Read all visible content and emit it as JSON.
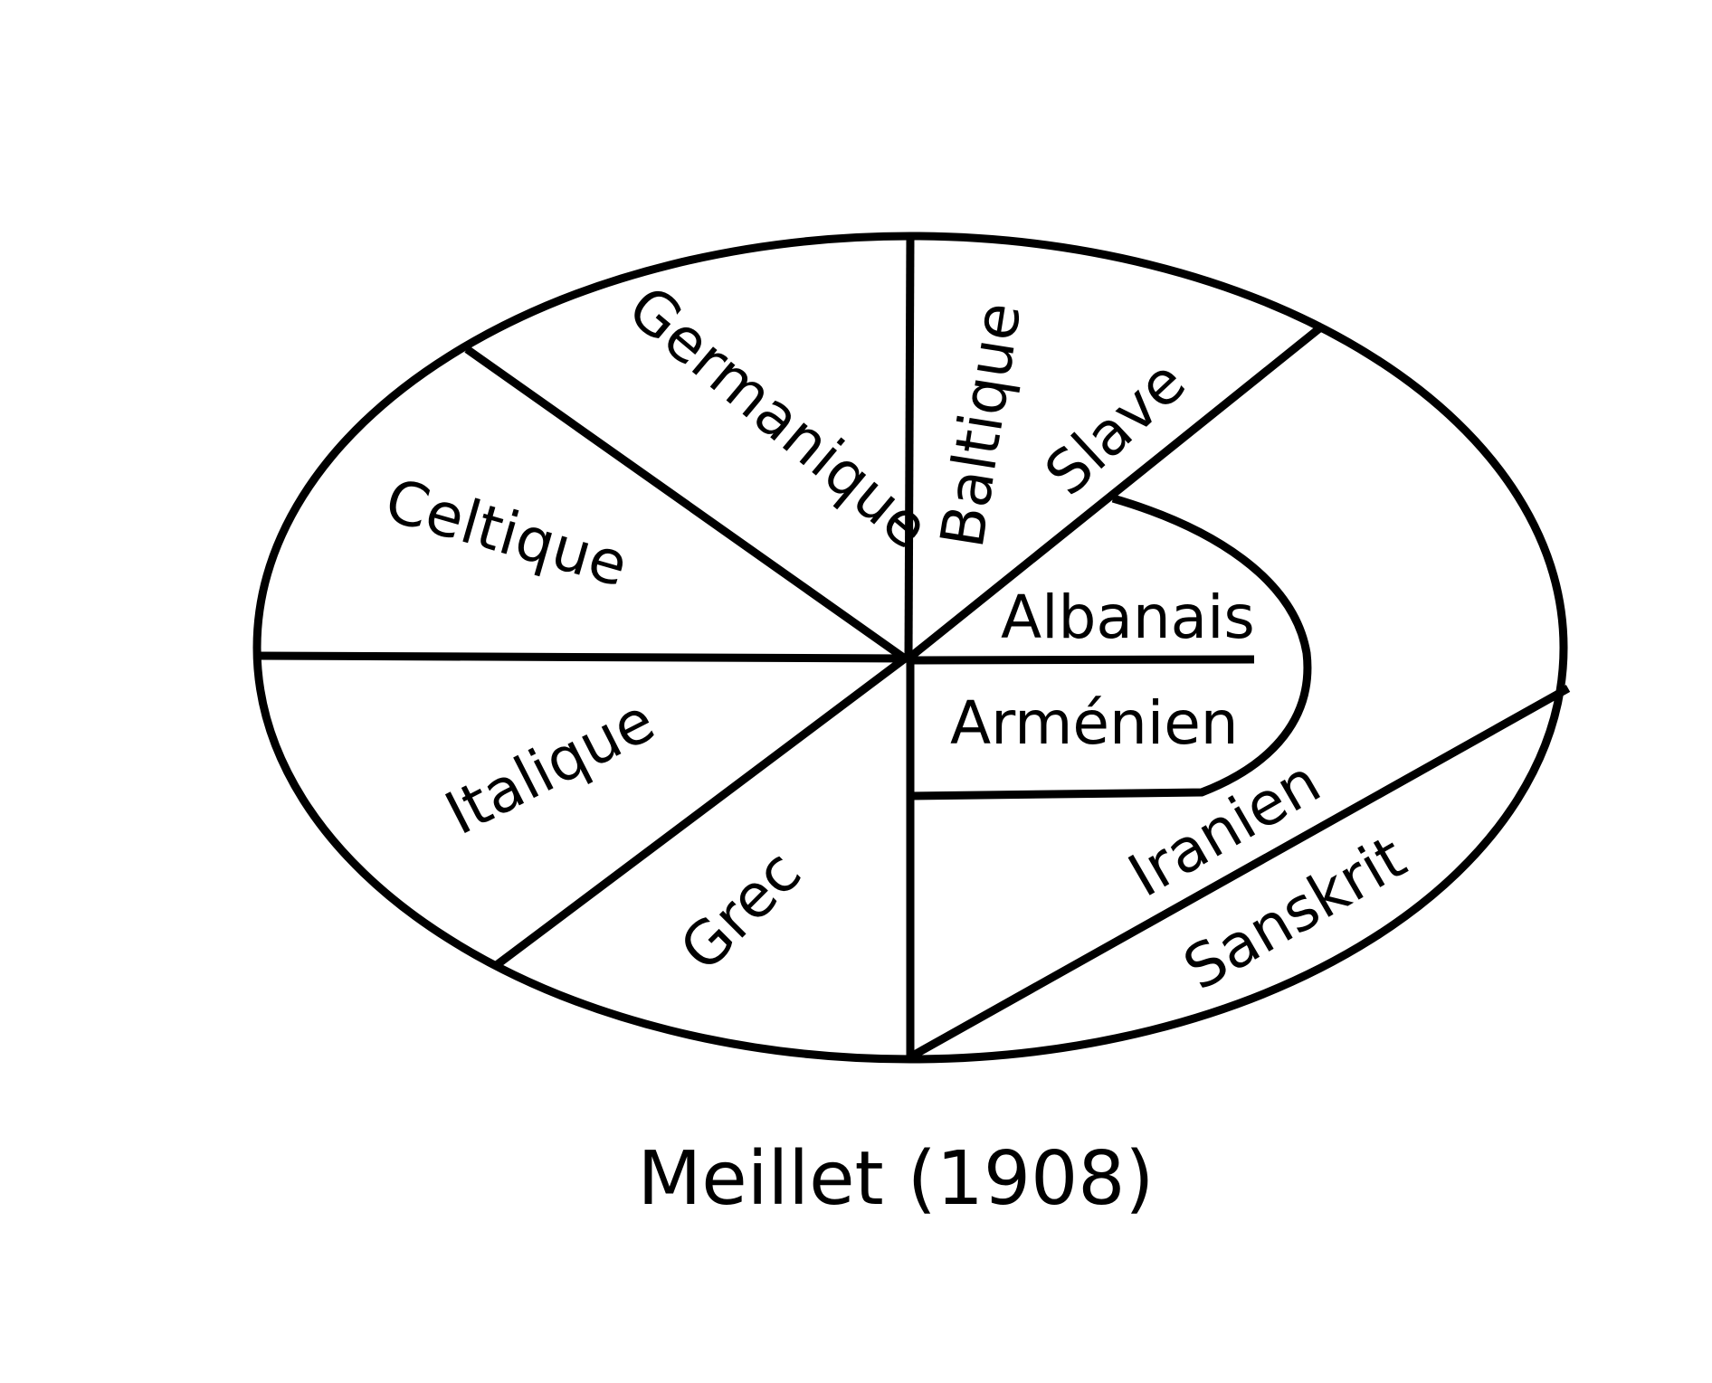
{
  "caption": "Meillet (1908)",
  "regions": {
    "germanique": "Germanique",
    "baltique": "Baltique",
    "slave": "Slave",
    "celtique": "Celtique",
    "albanais": "Albanais",
    "armenien": "Arménien",
    "italique": "Italique",
    "iranien": "Iranien",
    "grec": "Grec",
    "sanskrit": "Sanskrit"
  },
  "colors": {
    "line": "#000000",
    "background": "#ffffff"
  }
}
